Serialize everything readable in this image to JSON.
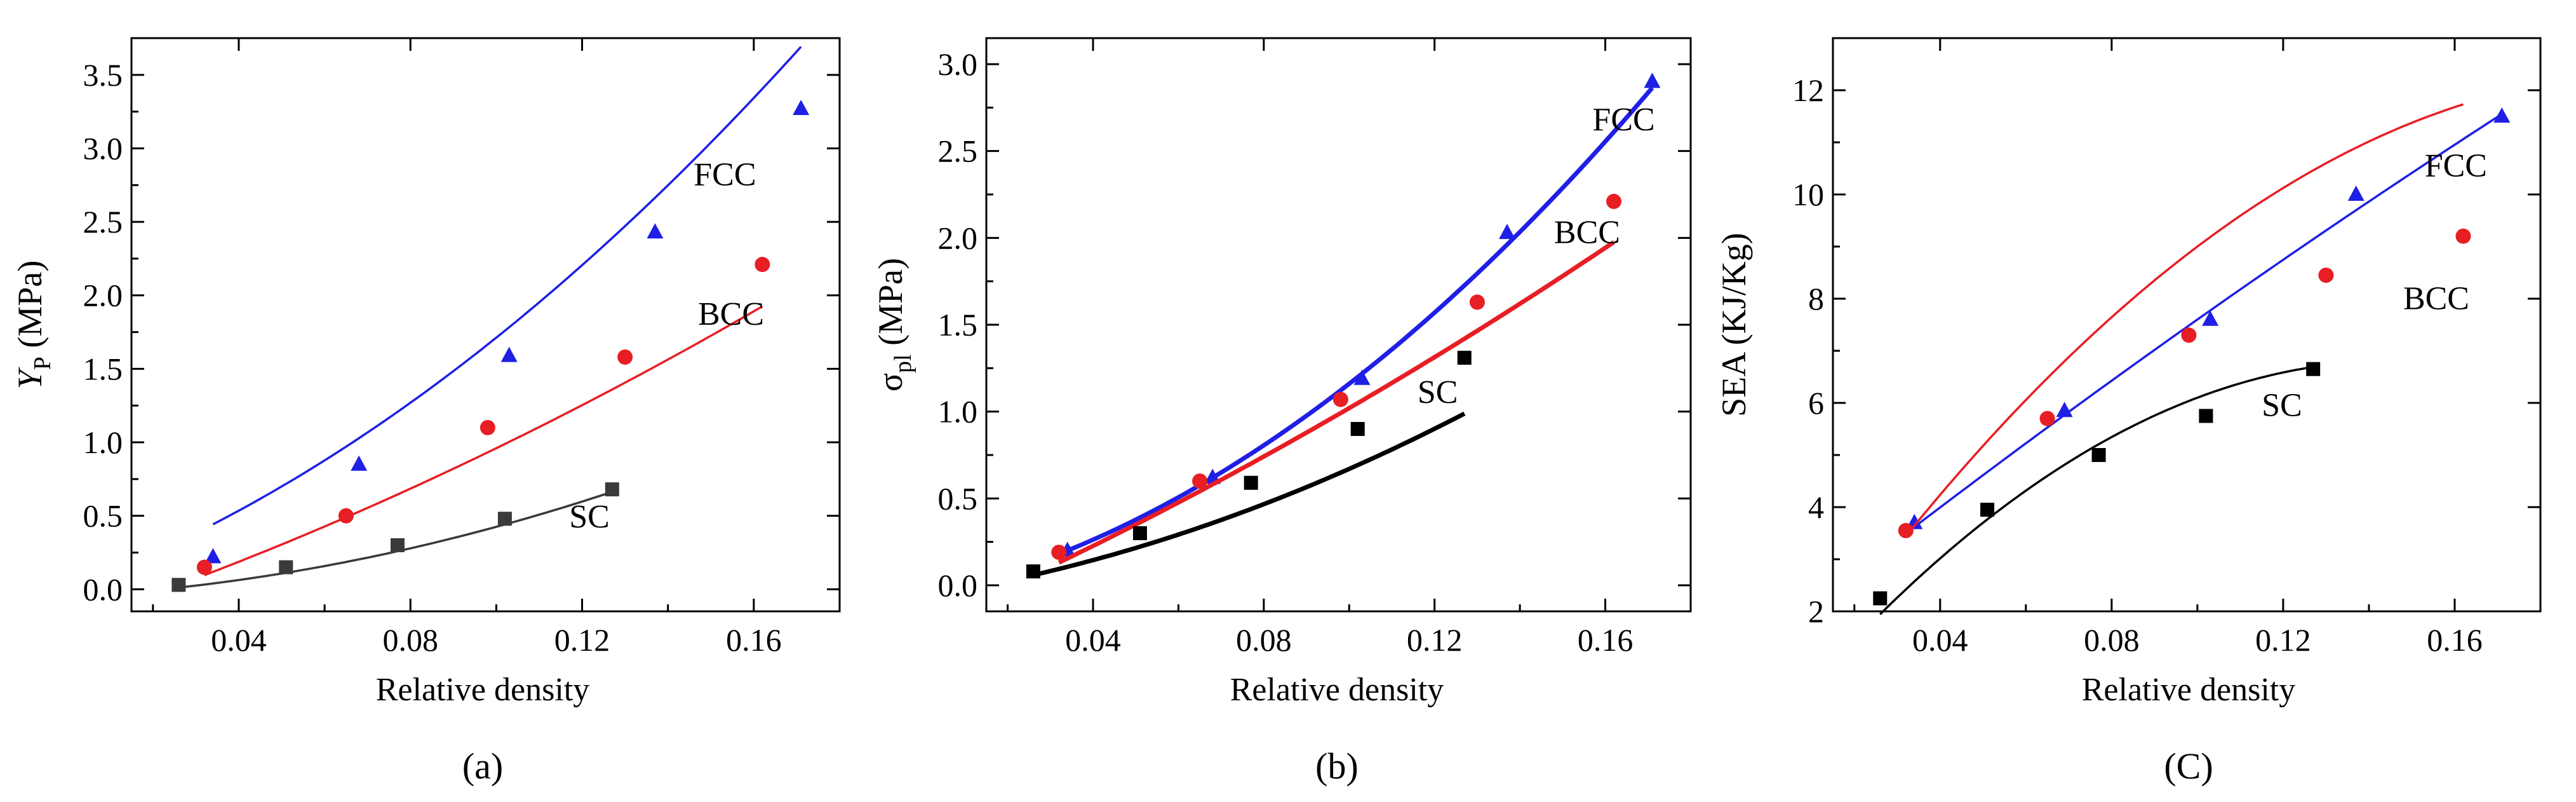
{
  "chart_data": [
    {
      "type": "scatter",
      "panel_label": "(a)",
      "title": "",
      "ylabel_main": "Y",
      "ylabel_sub": "P",
      "ylabel_unit": " (MPa)",
      "xlabel": "Relative density",
      "xlim": [
        0.015,
        0.18
      ],
      "ylim": [
        -0.15,
        3.75
      ],
      "xticks": [
        0.04,
        0.08,
        0.12,
        0.16
      ],
      "xtick_labels": [
        "0.04",
        "0.08",
        "0.12",
        "0.16"
      ],
      "yticks": [
        0,
        0.5,
        1.0,
        1.5,
        2.0,
        2.5,
        3.0,
        3.5
      ],
      "ytick_labels": [
        "0.0",
        "0.5",
        "1.0",
        "1.5",
        "2.0",
        "2.5",
        "3.0",
        "3.5"
      ],
      "series": [
        {
          "name": "FCC",
          "color": "#1f1fe6",
          "marker": "triangle",
          "x": [
            0.034,
            0.068,
            0.103,
            0.137,
            0.171
          ],
          "y": [
            0.22,
            0.85,
            1.59,
            2.43,
            3.27
          ],
          "fit": [
            0.0021,
            10.8,
            63.0
          ],
          "label_x": 0.146,
          "label_y": 2.75
        },
        {
          "name": "BCC",
          "color": "#e81e25",
          "marker": "circle",
          "x": [
            0.032,
            0.065,
            0.098,
            0.13,
            0.162
          ],
          "y": [
            0.15,
            0.5,
            1.1,
            1.58,
            2.21
          ],
          "fit": [
            -0.24,
            9.8,
            22.0
          ],
          "label_x": 0.147,
          "label_y": 1.8
        },
        {
          "name": "SC",
          "color": "#3a3a3a",
          "marker": "square",
          "x": [
            0.026,
            0.051,
            0.077,
            0.102,
            0.127
          ],
          "y": [
            0.03,
            0.15,
            0.3,
            0.48,
            0.68
          ],
          "fit": [
            -0.05,
            1.55,
            32.0
          ],
          "label_x": 0.117,
          "label_y": 0.42
        }
      ]
    },
    {
      "type": "scatter",
      "panel_label": "(b)",
      "title": "",
      "ylabel_main": "σ",
      "ylabel_sub": "pl",
      "ylabel_unit": " (MPa)",
      "xlabel": "Relative density",
      "xlim": [
        0.015,
        0.18
      ],
      "ylim": [
        -0.15,
        3.15
      ],
      "xticks": [
        0.04,
        0.08,
        0.12,
        0.16
      ],
      "xtick_labels": [
        "0.04",
        "0.08",
        "0.12",
        "0.16"
      ],
      "yticks": [
        0,
        0.5,
        1.0,
        1.5,
        2.0,
        2.5,
        3.0
      ],
      "ytick_labels": [
        "0.0",
        "0.5",
        "1.0",
        "1.5",
        "2.0",
        "2.5",
        "3.0"
      ],
      "series": [
        {
          "name": "FCC",
          "color": "#1f1fe6",
          "marker": "triangle",
          "x": [
            0.034,
            0.068,
            0.103,
            0.137,
            0.171
          ],
          "y": [
            0.2,
            0.62,
            1.19,
            2.03,
            2.9
          ],
          "fit": [
            -0.06,
            5.3,
            69.0
          ],
          "label_x": 0.157,
          "label_y": 2.62
        },
        {
          "name": "BCC",
          "color": "#e81e25",
          "marker": "circle",
          "x": [
            0.032,
            0.065,
            0.098,
            0.13,
            0.162
          ],
          "y": [
            0.19,
            0.6,
            1.07,
            1.63,
            2.21
          ],
          "fit": [
            -0.23,
            10.7,
            18.0
          ],
          "label_x": 0.148,
          "label_y": 1.97
        },
        {
          "name": "SC",
          "color": "#000000",
          "marker": "square",
          "x": [
            0.026,
            0.051,
            0.077,
            0.102,
            0.127
          ],
          "y": [
            0.08,
            0.3,
            0.59,
            0.9,
            1.31
          ],
          "fit": [
            -0.065,
            3.85,
            35.0
          ],
          "label_x": 0.116,
          "label_y": 1.05
        }
      ]
    },
    {
      "type": "scatter",
      "panel_label": "(C)",
      "title": "",
      "ylabel_main": "SEA (KJ/Kg)",
      "ylabel_sub": "",
      "ylabel_unit": "",
      "xlabel": "Relative density",
      "xlim": [
        0.015,
        0.18
      ],
      "ylim": [
        2,
        13
      ],
      "xticks": [
        0.04,
        0.08,
        0.12,
        0.16
      ],
      "xtick_labels": [
        "0.04",
        "0.08",
        "0.12",
        "0.16"
      ],
      "yticks": [
        2,
        4,
        6,
        8,
        10,
        12
      ],
      "ytick_labels": [
        "2",
        "4",
        "6",
        "8",
        "10",
        "12"
      ],
      "series": [
        {
          "name": "FCC",
          "color": "#1f1fe6",
          "marker": "triangle",
          "x": [
            0.034,
            0.069,
            0.103,
            0.137,
            0.171
          ],
          "y": [
            3.7,
            5.85,
            7.6,
            10.0,
            11.5
          ],
          "fit": [
            1.45,
            65.0,
            -35.0
          ],
          "label_x": 0.153,
          "label_y": 10.35
        },
        {
          "name": "BCC",
          "color": "#e81e25",
          "marker": "circle",
          "x": [
            0.032,
            0.065,
            0.098,
            0.13,
            0.162
          ],
          "y": [
            3.55,
            5.7,
            7.3,
            8.45,
            9.2
          ],
          "fit": [
            -0.1,
            120.0,
            -290.0
          ],
          "label_x": 0.148,
          "label_y": 7.8
        },
        {
          "name": "SC",
          "color": "#000000",
          "marker": "square",
          "x": [
            0.026,
            0.051,
            0.077,
            0.102,
            0.127
          ],
          "y": [
            2.25,
            3.95,
            5.0,
            5.75,
            6.65
          ],
          "fit": [
            -0.4,
            99.0,
            -340.0
          ],
          "label_x": 0.115,
          "label_y": 5.75
        }
      ]
    }
  ]
}
